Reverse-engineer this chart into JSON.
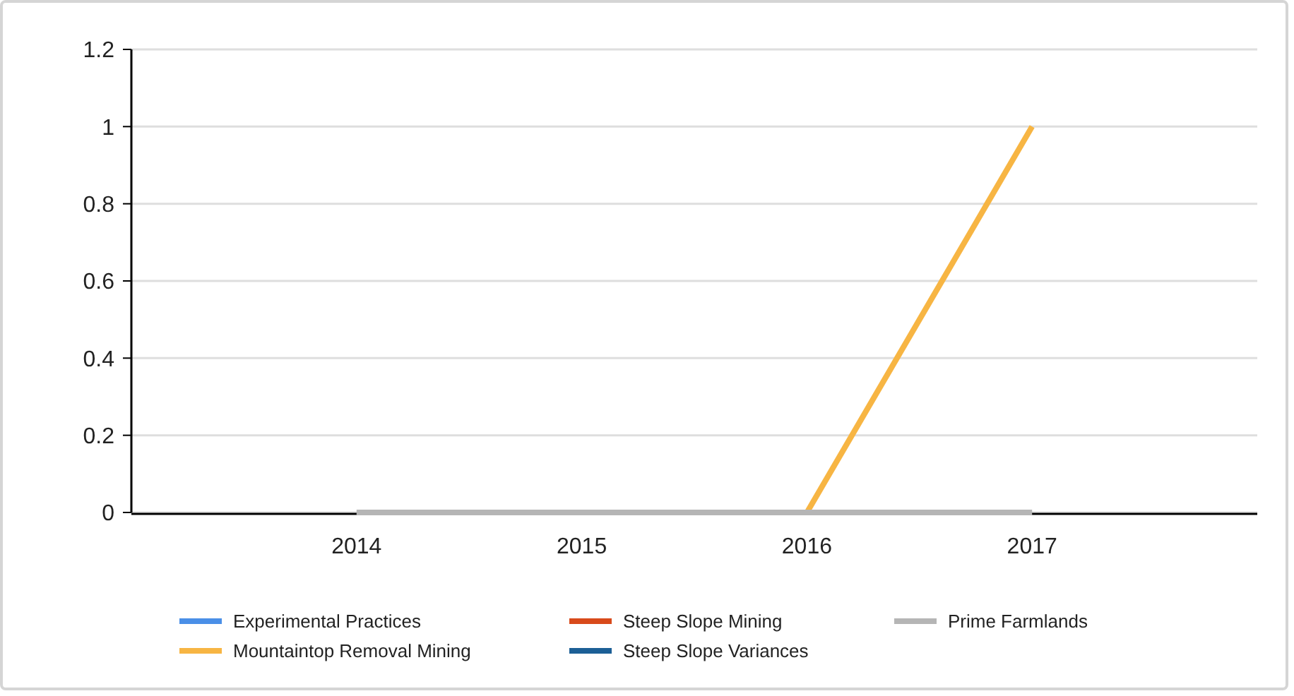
{
  "chart_data": {
    "type": "line",
    "categories": [
      "2014",
      "2015",
      "2016",
      "2017"
    ],
    "series": [
      {
        "name": "Experimental Practices",
        "color": "#4a8fe7",
        "values": [
          null,
          null,
          null,
          null
        ]
      },
      {
        "name": "Mountaintop Removal Mining",
        "color": "#f7b543",
        "values": [
          null,
          null,
          0,
          1
        ]
      },
      {
        "name": "Steep Slope Mining",
        "color": "#d84a1b",
        "values": [
          null,
          null,
          null,
          null
        ]
      },
      {
        "name": "Steep Slope Variances",
        "color": "#1c5f96",
        "values": [
          null,
          null,
          null,
          null
        ]
      },
      {
        "name": "Prime Farmlands",
        "color": "#b5b5b5",
        "values": [
          0,
          0,
          0,
          0
        ]
      }
    ],
    "ylim": [
      0,
      1.2
    ],
    "yticks": [
      0,
      0.2,
      0.4,
      0.6,
      0.8,
      1,
      1.2
    ],
    "grid": "y",
    "legend": "bottom",
    "marker": "none",
    "line_style": "solid"
  }
}
